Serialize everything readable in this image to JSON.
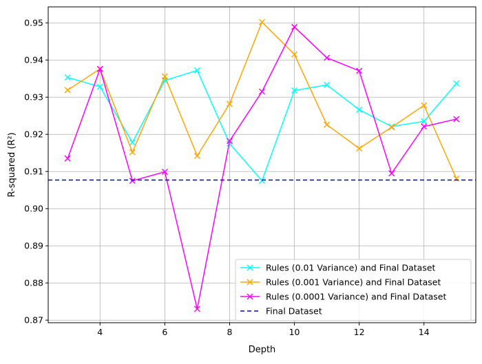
{
  "chart_data": {
    "type": "line",
    "title": "",
    "xlabel": "Depth",
    "ylabel": "R-squared (R²)",
    "xlim": [
      2.4,
      15.6
    ],
    "ylim": [
      0.8693,
      0.9543
    ],
    "x_ticks": [
      4,
      6,
      8,
      10,
      12,
      14
    ],
    "x_tick_labels": [
      "4",
      "6",
      "8",
      "10",
      "12",
      "14"
    ],
    "y_ticks": [
      0.87,
      0.88,
      0.89,
      0.9,
      0.91,
      0.92,
      0.93,
      0.94,
      0.95
    ],
    "y_tick_labels": [
      "0.87",
      "0.88",
      "0.89",
      "0.90",
      "0.91",
      "0.92",
      "0.93",
      "0.94",
      "0.95"
    ],
    "grid": true,
    "legend_position": "bottom-right",
    "x": [
      3,
      4,
      5,
      6,
      7,
      8,
      9,
      10,
      11,
      12,
      13,
      14,
      15
    ],
    "series": [
      {
        "name": "Rules (0.01 Variance) and Final Dataset",
        "color": "#00ffff",
        "marker": "x",
        "style": "solid",
        "values": [
          0.9353,
          0.9328,
          0.9178,
          0.9345,
          0.9372,
          0.9175,
          0.9075,
          0.9318,
          0.9333,
          0.9266,
          0.9221,
          0.9235,
          0.9337
        ]
      },
      {
        "name": "Rules (0.001 Variance) and Final Dataset",
        "color": "#ffa500",
        "marker": "x",
        "style": "solid",
        "values": [
          0.9319,
          0.9376,
          0.9152,
          0.9356,
          0.9142,
          0.9282,
          0.9502,
          0.9415,
          0.9226,
          0.9162,
          0.9219,
          0.9278,
          0.9081
        ]
      },
      {
        "name": "Rules (0.0001 Variance) and Final Dataset",
        "color": "#ff00ff",
        "marker": "x",
        "style": "solid",
        "values": [
          0.9135,
          0.9376,
          0.9075,
          0.9099,
          0.873,
          0.9182,
          0.9315,
          0.9489,
          0.9406,
          0.9371,
          0.9095,
          0.9221,
          0.9241
        ]
      },
      {
        "name": "Final Dataset",
        "color": "#0000cd",
        "marker": "none",
        "style": "dashed",
        "values": [
          0.9077,
          0.9077,
          0.9077,
          0.9077,
          0.9077,
          0.9077,
          0.9077,
          0.9077,
          0.9077,
          0.9077,
          0.9077,
          0.9077,
          0.9077
        ]
      }
    ]
  }
}
